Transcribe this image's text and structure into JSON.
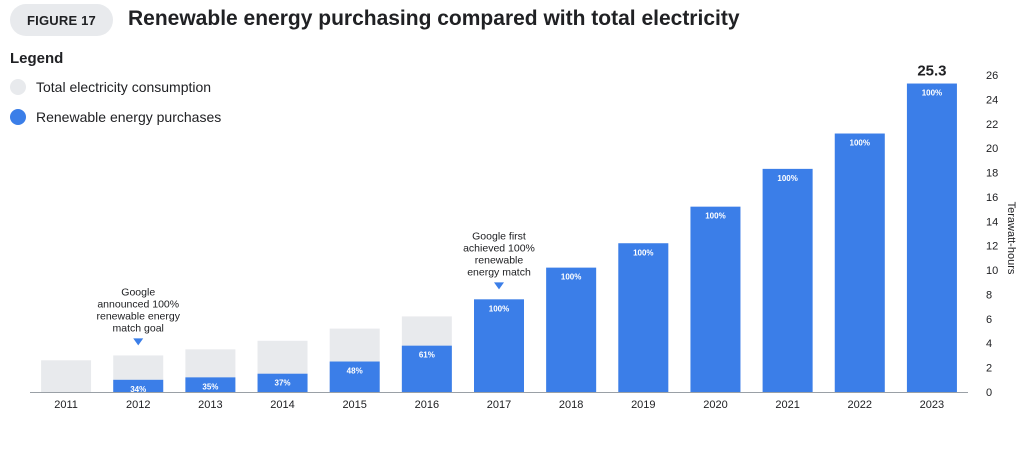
{
  "figure": {
    "badge": "FIGURE 17",
    "title": "Renewable energy purchasing compared with total electricity"
  },
  "legend": {
    "title": "Legend",
    "items": [
      {
        "label": "Total electricity consumption",
        "color": "#e8eaed"
      },
      {
        "label": "Renewable energy purchases",
        "color": "#3b7ee8"
      }
    ]
  },
  "chart_data": {
    "type": "bar",
    "ylabel": "Terawatt-hours",
    "ylim": [
      0,
      26
    ],
    "yticks": [
      0,
      2,
      4,
      6,
      8,
      10,
      12,
      14,
      16,
      18,
      20,
      22,
      24,
      26
    ],
    "y_axis_side": "right",
    "categories": [
      "2011",
      "2012",
      "2013",
      "2014",
      "2015",
      "2016",
      "2017",
      "2018",
      "2019",
      "2020",
      "2021",
      "2022",
      "2023"
    ],
    "series": [
      {
        "name": "Total electricity consumption",
        "color": "#e8eaed",
        "values": [
          2.6,
          3.0,
          3.5,
          4.2,
          5.2,
          6.2,
          7.6,
          10.2,
          12.2,
          15.2,
          18.3,
          21.2,
          25.3
        ]
      },
      {
        "name": "Renewable energy purchases",
        "color": "#3b7ee8",
        "values": [
          0,
          1.0,
          1.2,
          1.5,
          2.5,
          3.8,
          7.6,
          10.2,
          12.2,
          15.2,
          18.3,
          21.2,
          25.3
        ]
      }
    ],
    "bar_labels": [
      "",
      "34%",
      "35%",
      "37%",
      "48%",
      "61%",
      "100%",
      "100%",
      "100%",
      "100%",
      "100%",
      "100%",
      "100%"
    ],
    "top_value_label": {
      "category": "2023",
      "text": "25.3"
    },
    "annotations": [
      {
        "category": "2012",
        "lines": [
          "Google",
          "announced 100%",
          "renewable energy",
          "match goal"
        ]
      },
      {
        "category": "2017",
        "lines": [
          "Google first",
          "achieved 100%",
          "renewable",
          "energy match"
        ]
      }
    ]
  }
}
